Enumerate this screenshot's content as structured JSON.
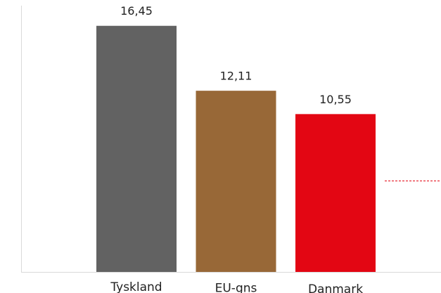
{
  "chart_data": {
    "type": "bar",
    "categories": [
      "Tyskland",
      "EU-gns",
      "Danmark"
    ],
    "values": [
      16.45,
      12.11,
      10.55
    ],
    "value_labels": [
      "16,45",
      "12,11",
      "10,55"
    ],
    "colors": [
      "#626262",
      "#986837",
      "#e30613"
    ],
    "ylim": [
      0,
      17.8
    ],
    "grid": false
  }
}
